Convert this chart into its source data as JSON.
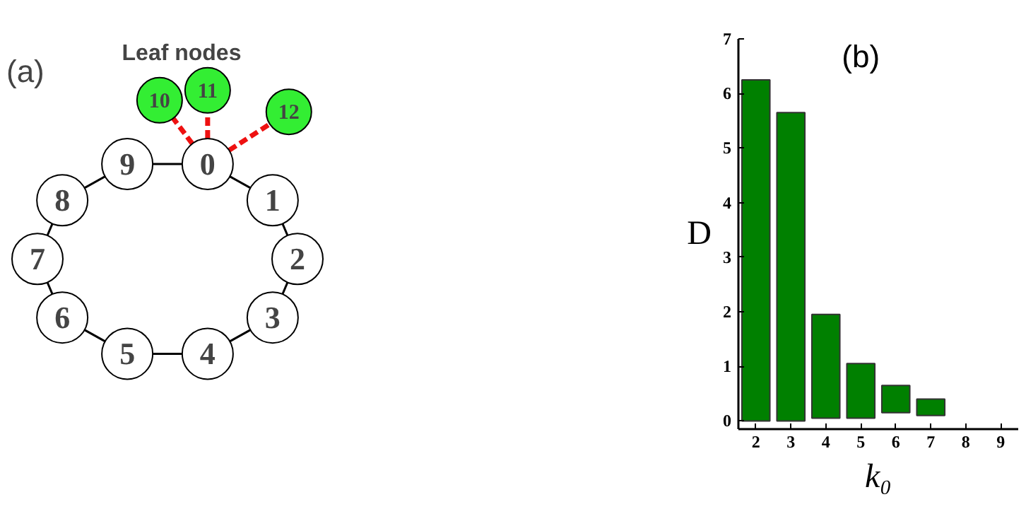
{
  "chart_data": [
    {
      "type": "other",
      "title": "(a)",
      "annotations": [
        "Leaf nodes"
      ],
      "categories": [
        "0",
        "1",
        "2",
        "3",
        "4",
        "5",
        "6",
        "7",
        "8",
        "9",
        "10",
        "11",
        "12"
      ],
      "colors": [
        "#ffffff",
        "#ffffff",
        "#ffffff",
        "#ffffff",
        "#ffffff",
        "#ffffff",
        "#ffffff",
        "#ffffff",
        "#ffffff",
        "#ffffff",
        "#33ee33",
        "#33ee33",
        "#33ee33"
      ]
    },
    {
      "type": "bar",
      "title": "(b)",
      "xlabel": "k₀",
      "ylabel": "D",
      "categories": [
        "2",
        "3",
        "4",
        "5",
        "6",
        "7",
        "8",
        "9"
      ],
      "values": [
        6.25,
        5.65,
        1.9,
        1.0,
        0.5,
        0.3,
        null,
        null
      ],
      "base": [
        0,
        0,
        0.05,
        0.05,
        0.15,
        0.1,
        null,
        null
      ],
      "color": "#008000",
      "ylim": [
        -0.15,
        7
      ],
      "yticks": [
        0,
        1,
        2,
        3,
        4,
        5,
        6,
        7
      ],
      "grid": false
    }
  ]
}
